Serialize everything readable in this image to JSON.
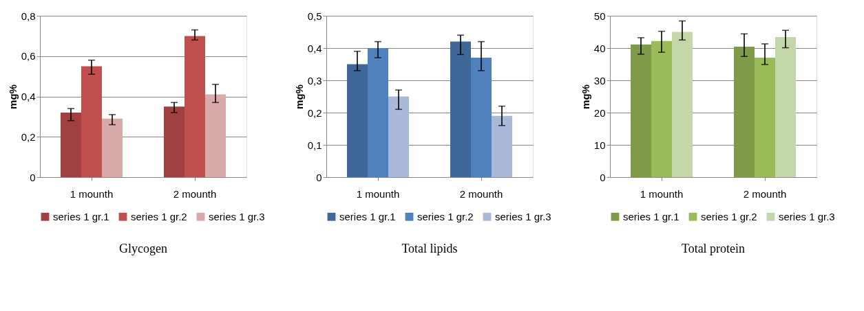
{
  "chart_data": [
    {
      "type": "bar",
      "title": "Glycogen",
      "ylabel": "mg%",
      "categories": [
        "1 mounth",
        "2 mounth"
      ],
      "ylim": [
        0,
        0.8
      ],
      "yticks": [
        0,
        {
          "value": 0.2,
          "label": "0,2"
        },
        {
          "value": 0.4,
          "label": "0,4"
        },
        {
          "value": 0.6,
          "label": "0,6"
        },
        {
          "value": 0.8,
          "label": "0,8"
        }
      ],
      "grid": "y",
      "legend": "bottom",
      "series": [
        {
          "name": "series 1 gr.1",
          "color": "#a04040",
          "values": [
            0.32,
            0.35
          ],
          "errors": [
            [
              0.28,
              0.34
            ],
            [
              0.32,
              0.37
            ]
          ]
        },
        {
          "name": "series 1 gr.2",
          "color": "#c0504d",
          "values": [
            0.55,
            0.7
          ],
          "errors": [
            [
              0.51,
              0.58
            ],
            [
              0.68,
              0.73
            ]
          ]
        },
        {
          "name": "series 1 gr.3",
          "color": "#d9aaaa",
          "values": [
            0.29,
            0.41
          ],
          "errors": [
            [
              0.26,
              0.31
            ],
            [
              0.37,
              0.46
            ]
          ]
        }
      ]
    },
    {
      "type": "bar",
      "title": "Total lipids",
      "ylabel": "mg%",
      "categories": [
        "1 mounth",
        "2 mounth"
      ],
      "ylim": [
        0,
        0.5
      ],
      "yticks": [
        0,
        {
          "value": 0.1,
          "label": "0,1"
        },
        {
          "value": 0.2,
          "label": "0,2"
        },
        {
          "value": 0.3,
          "label": "0,3"
        },
        {
          "value": 0.4,
          "label": "0,4"
        },
        {
          "value": 0.5,
          "label": "0,5"
        }
      ],
      "grid": "y",
      "legend": "bottom",
      "series": [
        {
          "name": "series 1 gr.1",
          "color": "#3f6898",
          "values": [
            0.35,
            0.42
          ],
          "errors": [
            [
              0.33,
              0.39
            ],
            [
              0.38,
              0.44
            ]
          ]
        },
        {
          "name": "series 1 gr.2",
          "color": "#4f81bd",
          "values": [
            0.4,
            0.37
          ],
          "errors": [
            [
              0.37,
              0.42
            ],
            [
              0.33,
              0.42
            ]
          ]
        },
        {
          "name": "series 1 gr.3",
          "color": "#aab9d9",
          "values": [
            0.25,
            0.19
          ],
          "errors": [
            [
              0.21,
              0.27
            ],
            [
              0.16,
              0.22
            ]
          ]
        }
      ]
    },
    {
      "type": "bar",
      "title": "Total protein",
      "ylabel": "mg%",
      "categories": [
        "1 mounth",
        "2 mounth"
      ],
      "ylim": [
        0,
        50
      ],
      "yticks": [
        0,
        10,
        20,
        30,
        40,
        50
      ],
      "grid": "y",
      "legend": "bottom",
      "series": [
        {
          "name": "series 1 gr.1",
          "color": "#7f9a48",
          "values": [
            41.1,
            40.4
          ],
          "errors": [
            [
              38.1,
              43.2
            ],
            [
              37.4,
              44.4
            ]
          ]
        },
        {
          "name": "series 1 gr.2",
          "color": "#9bbb59",
          "values": [
            42.2,
            37.0
          ],
          "errors": [
            [
              38.7,
              45.2
            ],
            [
              34.9,
              41.3
            ]
          ]
        },
        {
          "name": "series 1 gr.3",
          "color": "#c4d7a8",
          "values": [
            45.0,
            43.4
          ],
          "errors": [
            [
              42.5,
              48.4
            ],
            [
              40.1,
              45.5
            ]
          ]
        }
      ]
    }
  ]
}
